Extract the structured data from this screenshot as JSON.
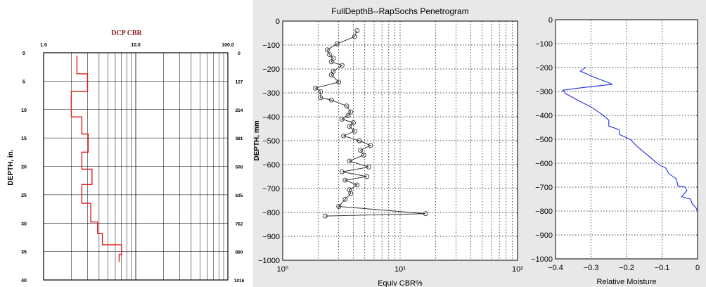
{
  "chart_data": [
    {
      "type": "line",
      "title": "DCP CBR",
      "xlabel": "",
      "ylabel": "DEPTH, in.",
      "right_axis_label": "",
      "x_scale": "log",
      "xlim": [
        1.0,
        100.0
      ],
      "x_tick_labels": [
        "1.0",
        "10.0",
        "100.0"
      ],
      "ylim": [
        0,
        40
      ],
      "y_tick_labels": [
        "0",
        "5",
        "10",
        "15",
        "20",
        "25",
        "30",
        "35",
        "40"
      ],
      "right_tick_labels": [
        "0",
        "127",
        "254",
        "381",
        "508",
        "635",
        "762",
        "889",
        "1016"
      ],
      "grid": true,
      "colors": {
        "series": "#e21b1b",
        "title": "#8b1a1a",
        "frame": "#000000",
        "grid": "#000000"
      },
      "series": [
        {
          "style": "step",
          "x": [
            2.3,
            2.3,
            3.0,
            3.0,
            2.0,
            2.0,
            2.6,
            2.6,
            3.05,
            3.05,
            2.6,
            2.6,
            3.35,
            3.35,
            2.6,
            2.6,
            3.25,
            3.25,
            3.85,
            3.85,
            4.35,
            4.35,
            7.0,
            7.0,
            6.6,
            6.6
          ],
          "y": [
            0.5,
            3.7,
            3.7,
            6.8,
            6.8,
            11.3,
            11.3,
            14.3,
            14.3,
            17.5,
            17.5,
            20.5,
            20.5,
            23.2,
            23.2,
            26.5,
            26.5,
            29.8,
            29.8,
            31.8,
            31.8,
            33.8,
            33.8,
            35.5,
            35.5,
            36.8
          ]
        }
      ]
    },
    {
      "type": "line",
      "title": "FullDepthB--RapSochs Penetrogram",
      "xlabel": "Equiv CBR%",
      "ylabel": "DEPTH, mm",
      "x_scale": "log",
      "xlim": [
        1,
        100
      ],
      "ylim": [
        -1000,
        0
      ],
      "x_tick_labels": [
        "10⁰",
        "10¹",
        "10²"
      ],
      "y_ticks": [
        0,
        -100,
        -200,
        -300,
        -400,
        -500,
        -600,
        -700,
        -800,
        -900,
        -1000
      ],
      "grid": "dotted",
      "colors": {
        "series": "#333333",
        "marker": "#333333"
      },
      "series": [
        {
          "marker": "open-circle",
          "x": [
            4.3,
            4.1,
            2.9,
            2.4,
            2.5,
            2.7,
            2.6,
            3.2,
            2.7,
            2.6,
            3.0,
            1.9,
            2.1,
            2.1,
            2.6,
            3.5,
            3.8,
            3.6,
            3.2,
            4.0,
            3.7,
            4.1,
            3.3,
            4.5,
            5.6,
            4.6,
            4.9,
            3.7,
            5.4,
            3.2,
            5.2,
            3.4,
            4.3,
            3.7,
            3.8,
            3.4,
            3.0,
            16.5,
            2.3
          ],
          "y": [
            -40,
            -65,
            -95,
            -120,
            -140,
            -155,
            -170,
            -185,
            -210,
            -225,
            -255,
            -280,
            -295,
            -320,
            -330,
            -355,
            -380,
            -395,
            -410,
            -425,
            -440,
            -460,
            -480,
            -500,
            -520,
            -540,
            -560,
            -585,
            -610,
            -630,
            -650,
            -665,
            -685,
            -705,
            -720,
            -745,
            -775,
            -805,
            -815
          ]
        }
      ]
    },
    {
      "type": "line",
      "title": "",
      "xlabel": "Relative Moisture",
      "ylabel": "",
      "xlim": [
        -0.4,
        0
      ],
      "ylim": [
        -1000,
        0
      ],
      "x_ticks": [
        -0.4,
        -0.3,
        -0.2,
        -0.1,
        0
      ],
      "y_ticks": [
        0,
        -100,
        -200,
        -300,
        -400,
        -500,
        -600,
        -700,
        -800,
        -900,
        -1000
      ],
      "grid": "dotted",
      "colors": {
        "series": "#1f2fe0"
      },
      "series": [
        {
          "x": [
            -0.315,
            -0.33,
            -0.3,
            -0.24,
            -0.33,
            -0.38,
            -0.37,
            -0.34,
            -0.3,
            -0.27,
            -0.25,
            -0.25,
            -0.22,
            -0.22,
            -0.19,
            -0.17,
            -0.15,
            -0.13,
            -0.11,
            -0.09,
            -0.08,
            -0.06,
            -0.055,
            -0.035,
            -0.03,
            -0.045,
            -0.02,
            -0.015,
            -0.005,
            0.0
          ],
          "y": [
            -200,
            -215,
            -235,
            -270,
            -285,
            -295,
            -310,
            -335,
            -365,
            -395,
            -420,
            -445,
            -460,
            -480,
            -500,
            -530,
            -555,
            -580,
            -605,
            -620,
            -645,
            -665,
            -695,
            -700,
            -715,
            -740,
            -750,
            -770,
            -785,
            -800
          ]
        }
      ]
    }
  ]
}
